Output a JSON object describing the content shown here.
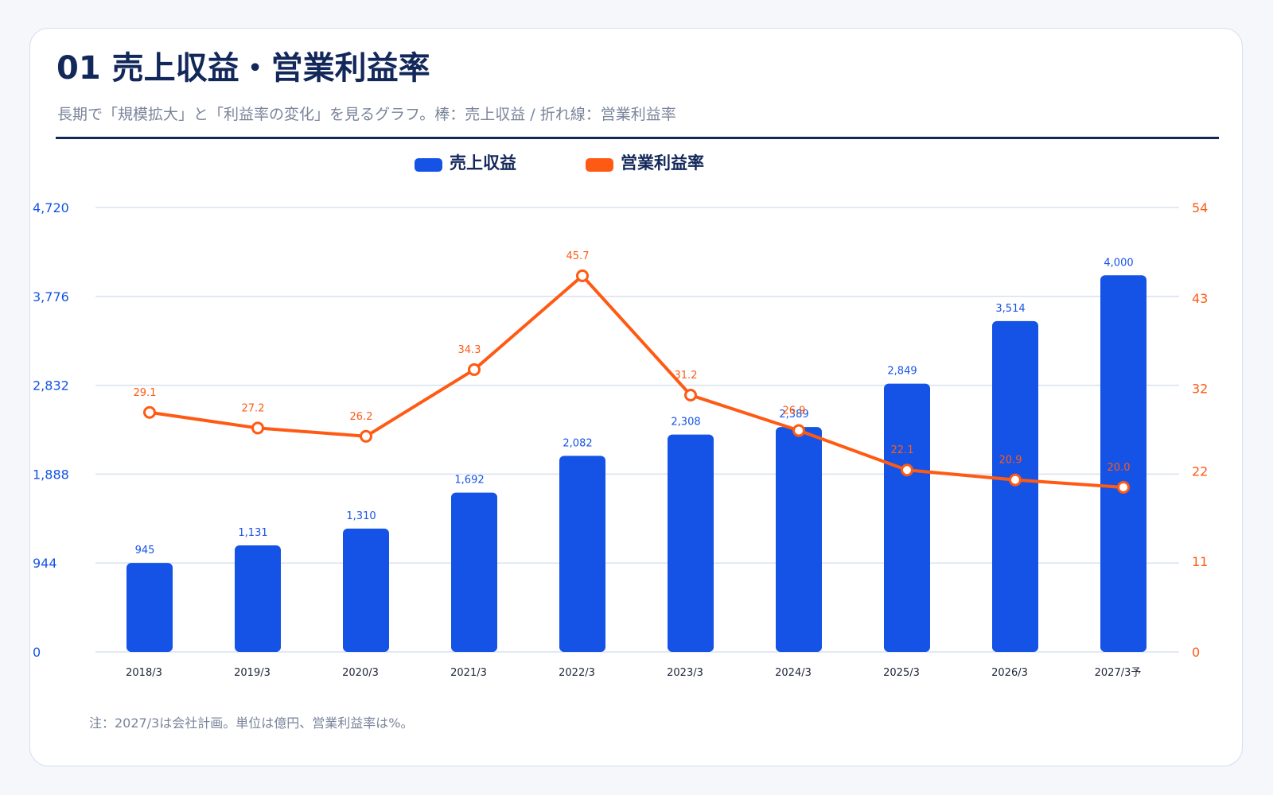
{
  "header": {
    "title": "01 売上収益・営業利益率",
    "subtitle": "長期で「規模拡大」と「利益率の変化」を見るグラフ。棒：売上収益 / 折れ線：営業利益率"
  },
  "note": "注：2027/3は会社計画。単位は億円、営業利益率は%。",
  "colors": {
    "bar": "#1553e6",
    "line": "#ff5a14",
    "grid": "#d9e2ef",
    "axis_left_text": "#1553e6",
    "axis_right_text": "#ff5a14"
  },
  "chart_data": {
    "type": "bar",
    "categories": [
      "2018/3",
      "2019/3",
      "2020/3",
      "2021/3",
      "2022/3",
      "2023/3",
      "2024/3",
      "2025/3",
      "2026/3",
      "2027/3予"
    ],
    "series": [
      {
        "name": "売上収益",
        "type": "bar",
        "axis": "left",
        "values": [
          945,
          1131,
          1310,
          1692,
          2082,
          2308,
          2389,
          2849,
          3514,
          4000
        ],
        "value_labels": [
          "945",
          "1,131",
          "1,310",
          "1,692",
          "2,082",
          "2,308",
          "2,389",
          "2,849",
          "3,514",
          "4,000"
        ]
      },
      {
        "name": "営業利益率",
        "type": "line",
        "axis": "right",
        "values": [
          29.1,
          27.2,
          26.2,
          34.3,
          45.7,
          31.2,
          26.9,
          22.1,
          20.9,
          20.0
        ],
        "value_labels": [
          "29.1",
          "27.2",
          "26.2",
          "34.3",
          "45.7",
          "31.2",
          "26.9",
          "22.1",
          "20.9",
          "20.0"
        ]
      }
    ],
    "y_left": {
      "ylim": [
        0,
        4720
      ],
      "ticks": [
        0,
        944,
        1888,
        2832,
        3776,
        4720
      ],
      "tick_labels": [
        "0",
        "944",
        "1,888",
        "2,832",
        "3,776",
        "4,720"
      ]
    },
    "y_right": {
      "ylim": [
        0,
        54
      ],
      "ticks": [
        0,
        11,
        22,
        32,
        43,
        54
      ],
      "tick_labels": [
        "0",
        "11",
        "22",
        "32",
        "43",
        "54"
      ]
    },
    "grid": true,
    "legend": "top-center"
  }
}
